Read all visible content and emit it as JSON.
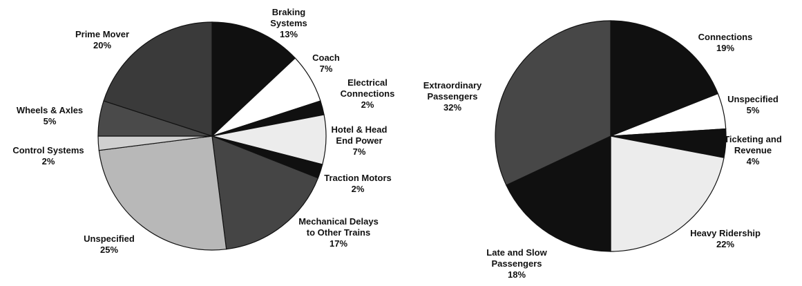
{
  "chart_data": [
    {
      "type": "pie",
      "categories": [
        "Braking Systems",
        "Coach",
        "Electrical Connections",
        "Hotel & Head End Power",
        "Traction Motors",
        "Mechanical Delays to Other Trains",
        "Unspecified",
        "Control Systems",
        "Wheels & Axles",
        "Prime Mover"
      ],
      "values": [
        13,
        7,
        2,
        7,
        2,
        17,
        25,
        2,
        5,
        20
      ],
      "value_labels": [
        "13%",
        "7%",
        "2%",
        "7%",
        "2%",
        "17%",
        "25%",
        "2%",
        "5%",
        "20%"
      ],
      "colors": [
        "#101010",
        "#ffffff",
        "#101010",
        "#ececec",
        "#101010",
        "#454545",
        "#b8b8b8",
        "#cfcfcf",
        "#4a4a4a",
        "#3a3a3a"
      ]
    },
    {
      "type": "pie",
      "categories": [
        "Connections",
        "Unspecified",
        "Ticketing and Revenue",
        "Heavy Ridership",
        "Late and Slow Passengers",
        "Extraordinary Passengers"
      ],
      "values": [
        19,
        5,
        4,
        22,
        18,
        32
      ],
      "value_labels": [
        "19%",
        "5%",
        "4%",
        "22%",
        "18%",
        "32%"
      ],
      "colors": [
        "#101010",
        "#ffffff",
        "#101010",
        "#ececec",
        "#101010",
        "#474747"
      ]
    }
  ]
}
